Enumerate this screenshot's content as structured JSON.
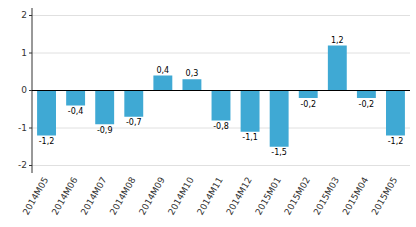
{
  "chart_data": {
    "type": "bar",
    "categories": [
      "2014M05",
      "2014M06",
      "2014M07",
      "2014M08",
      "2014M09",
      "2014M10",
      "2014M11",
      "2014M12",
      "2015M01",
      "2015M02",
      "2015M03",
      "2015M04",
      "2015M05"
    ],
    "values": [
      -1.2,
      -0.4,
      -0.9,
      -0.7,
      0.4,
      0.3,
      -0.8,
      -1.1,
      -1.5,
      -0.2,
      1.2,
      -0.2,
      -1.2
    ],
    "value_labels": [
      "-1,2",
      "-0,4",
      "-0,9",
      "-0,7",
      "0,4",
      "0,3",
      "-0,8",
      "-1,1",
      "-1,5",
      "-0,2",
      "1,2",
      "-0,2",
      "-1,2"
    ],
    "data_labels": true,
    "color": "#3fa9d4",
    "ylim": [
      -2.2,
      2.2
    ],
    "yticks": [
      -2,
      -1,
      0,
      1,
      2
    ],
    "grid": true
  }
}
